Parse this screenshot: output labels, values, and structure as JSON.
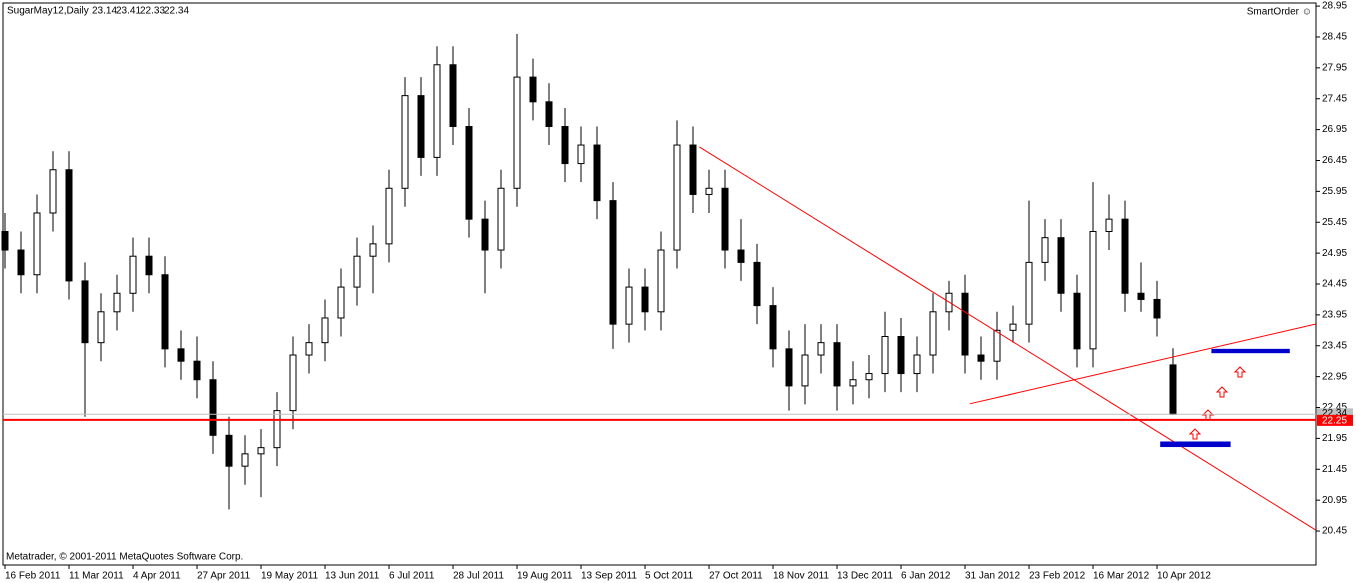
{
  "chart_data": {
    "type": "candlestick",
    "title": "SugarMay12,Daily",
    "badge": "SmartOrder ☺",
    "footer": "Metatrader, © 2001-2011 MetaQuotes Software Corp.",
    "categories": [
      "16 Feb 2011",
      null,
      null,
      null,
      "11 Mar 2011",
      null,
      null,
      null,
      "4 Apr 2011",
      null,
      null,
      null,
      "27 Apr 2011",
      null,
      null,
      null,
      "19 May 2011",
      null,
      null,
      null,
      "13 Jun 2011",
      null,
      null,
      null,
      "6 Jul 2011",
      null,
      null,
      null,
      "28 Jul 2011",
      null,
      null,
      null,
      "19 Aug 2011",
      null,
      null,
      null,
      "13 Sep 2011",
      null,
      null,
      null,
      "5 Oct 2011",
      null,
      null,
      null,
      "27 Oct 2011",
      null,
      null,
      null,
      "18 Nov 2011",
      null,
      null,
      null,
      "13 Dec 2011",
      null,
      null,
      null,
      "6 Jan 2012",
      null,
      null,
      null,
      "31 Jan 2012",
      null,
      null,
      null,
      "23 Feb 2012",
      null,
      null,
      null,
      "16 Mar 2012",
      null,
      null,
      null,
      "10 Apr 2012",
      null
    ],
    "candles": [
      [
        25.3,
        25.6,
        24.7,
        25.0
      ],
      [
        25.0,
        25.3,
        24.3,
        24.6
      ],
      [
        24.6,
        25.9,
        24.3,
        25.6
      ],
      [
        25.6,
        26.6,
        25.3,
        26.3
      ],
      [
        26.3,
        26.6,
        24.2,
        24.5
      ],
      [
        24.5,
        24.8,
        22.3,
        23.5
      ],
      [
        23.5,
        24.3,
        23.2,
        24.0
      ],
      [
        24.0,
        24.6,
        23.7,
        24.3
      ],
      [
        24.3,
        25.2,
        24.0,
        24.9
      ],
      [
        24.9,
        25.2,
        24.3,
        24.6
      ],
      [
        24.6,
        24.9,
        23.1,
        23.4
      ],
      [
        23.4,
        23.7,
        22.9,
        23.2
      ],
      [
        23.2,
        23.6,
        22.6,
        22.9
      ],
      [
        22.9,
        23.2,
        21.7,
        22.0
      ],
      [
        22.0,
        22.3,
        20.8,
        21.5
      ],
      [
        21.5,
        22.0,
        21.2,
        21.7
      ],
      [
        21.7,
        22.1,
        21.0,
        21.8
      ],
      [
        21.8,
        22.7,
        21.5,
        22.4
      ],
      [
        22.4,
        23.6,
        22.1,
        23.3
      ],
      [
        23.3,
        23.8,
        23.0,
        23.5
      ],
      [
        23.5,
        24.2,
        23.2,
        23.9
      ],
      [
        23.9,
        24.7,
        23.6,
        24.4
      ],
      [
        24.4,
        25.2,
        24.1,
        24.9
      ],
      [
        24.9,
        25.4,
        24.3,
        25.1
      ],
      [
        25.1,
        26.3,
        24.8,
        26.0
      ],
      [
        26.0,
        27.8,
        25.7,
        27.5
      ],
      [
        27.5,
        27.8,
        26.2,
        26.5
      ],
      [
        26.5,
        28.3,
        26.2,
        28.0
      ],
      [
        28.0,
        28.3,
        26.7,
        27.0
      ],
      [
        27.0,
        27.3,
        25.2,
        25.5
      ],
      [
        25.5,
        25.8,
        24.3,
        25.0
      ],
      [
        25.0,
        26.3,
        24.7,
        26.0
      ],
      [
        26.0,
        28.5,
        25.7,
        27.8
      ],
      [
        27.8,
        28.1,
        27.1,
        27.4
      ],
      [
        27.4,
        27.7,
        26.7,
        27.0
      ],
      [
        27.0,
        27.3,
        26.1,
        26.4
      ],
      [
        26.4,
        27.0,
        26.1,
        26.7
      ],
      [
        26.7,
        27.0,
        25.5,
        25.8
      ],
      [
        25.8,
        26.1,
        23.4,
        23.8
      ],
      [
        23.8,
        24.7,
        23.5,
        24.4
      ],
      [
        24.4,
        24.7,
        23.7,
        24.0
      ],
      [
        24.0,
        25.3,
        23.7,
        25.0
      ],
      [
        25.0,
        27.1,
        24.7,
        26.7
      ],
      [
        26.7,
        27.0,
        25.6,
        25.9
      ],
      [
        25.9,
        26.3,
        25.6,
        26.0
      ],
      [
        26.0,
        26.3,
        24.7,
        25.0
      ],
      [
        25.0,
        25.5,
        24.5,
        24.8
      ],
      [
        24.8,
        25.1,
        23.8,
        24.1
      ],
      [
        24.1,
        24.4,
        23.1,
        23.4
      ],
      [
        23.4,
        23.7,
        22.4,
        22.8
      ],
      [
        22.8,
        23.8,
        22.5,
        23.3
      ],
      [
        23.3,
        23.8,
        23.0,
        23.5
      ],
      [
        23.5,
        23.8,
        22.4,
        22.8
      ],
      [
        22.8,
        23.2,
        22.5,
        22.9
      ],
      [
        22.9,
        23.3,
        22.6,
        23.0
      ],
      [
        23.0,
        24.0,
        22.7,
        23.6
      ],
      [
        23.6,
        23.9,
        22.7,
        23.0
      ],
      [
        23.0,
        23.6,
        22.7,
        23.3
      ],
      [
        23.3,
        24.3,
        23.0,
        24.0
      ],
      [
        24.0,
        24.5,
        23.7,
        24.3
      ],
      [
        24.3,
        24.6,
        23.0,
        23.3
      ],
      [
        23.3,
        23.6,
        22.9,
        23.2
      ],
      [
        23.2,
        24.0,
        22.9,
        23.7
      ],
      [
        23.7,
        24.1,
        23.5,
        23.8
      ],
      [
        23.8,
        25.8,
        23.5,
        24.8
      ],
      [
        24.8,
        25.5,
        24.5,
        25.2
      ],
      [
        25.2,
        25.5,
        24.0,
        24.3
      ],
      [
        24.3,
        24.6,
        23.1,
        23.4
      ],
      [
        23.4,
        26.1,
        23.1,
        25.3
      ],
      [
        25.3,
        25.9,
        25.0,
        25.5
      ],
      [
        25.5,
        25.8,
        24.0,
        24.3
      ],
      [
        24.3,
        24.8,
        24.0,
        24.2
      ],
      [
        24.2,
        24.5,
        23.6,
        23.9
      ],
      [
        23.14,
        23.41,
        22.33,
        22.34
      ]
    ],
    "up_color": "#ffffff",
    "down_color": "#000000",
    "outline_color": "#000000",
    "ylim": [
      19.9,
      29.0
    ],
    "yticks": [
      28.95,
      28.45,
      27.95,
      27.45,
      26.95,
      26.45,
      25.95,
      25.45,
      24.95,
      24.45,
      23.95,
      23.45,
      22.95,
      22.45,
      21.95,
      21.45,
      20.95,
      20.45
    ],
    "bid": 22.34,
    "bid_color": "#c0c0c0",
    "hline": {
      "value": 22.25,
      "color": "#ff0000"
    },
    "trendlines": [
      {
        "from": [
          43.4,
          26.67
        ],
        "to": [
          81.9,
          20.47
        ],
        "color": "#ff0000"
      },
      {
        "from": [
          60.3,
          22.51
        ],
        "to": [
          81.9,
          23.8
        ],
        "color": "#ff0000"
      }
    ],
    "rectangles": [
      {
        "from": [
          72.2,
          21.81
        ],
        "to": [
          76.6,
          21.9
        ],
        "color": "#0000cc"
      },
      {
        "from": [
          75.4,
          23.33
        ],
        "to": [
          80.3,
          23.4
        ],
        "color": "#0000cc"
      }
    ]
  }
}
